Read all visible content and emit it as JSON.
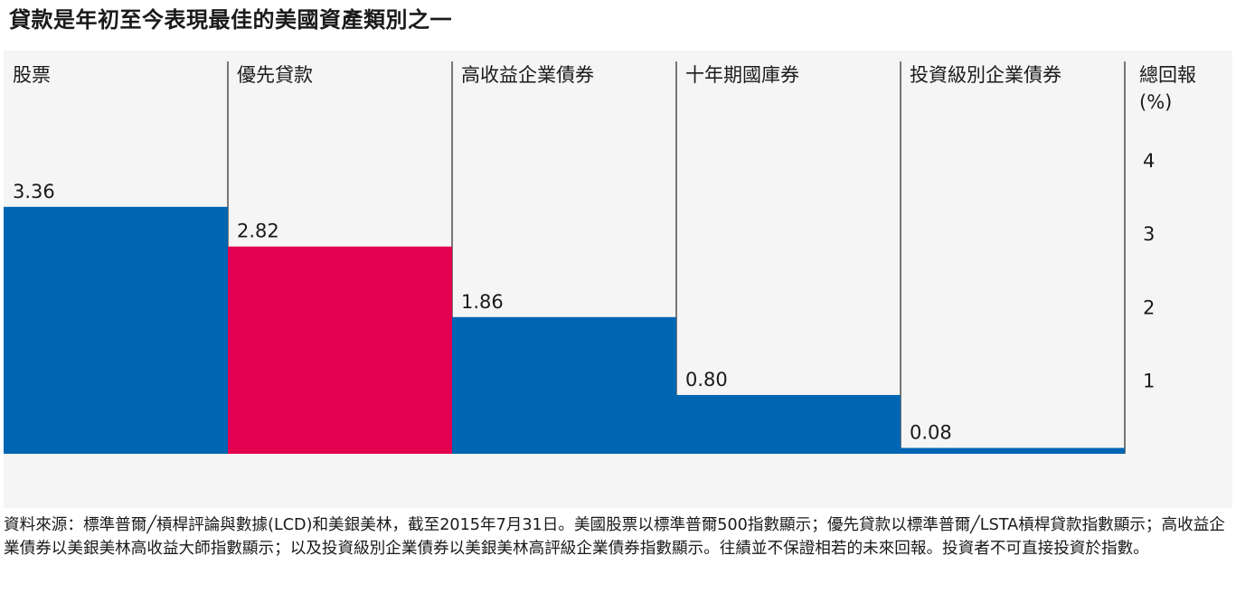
{
  "chart_data": {
    "type": "bar",
    "title": "貸款是年初至今表現最佳的美國資產類別之一",
    "categories": [
      "股票",
      "優先貸款",
      "高收益企業債券",
      "十年期國庫券",
      "投資級別企業債券"
    ],
    "values": [
      3.36,
      2.82,
      1.86,
      0.8,
      0.08
    ],
    "value_labels": [
      "3.36",
      "2.82",
      "1.86",
      "0.80",
      "0.08"
    ],
    "colors": [
      "#0066b3",
      "#e3004f",
      "#0066b3",
      "#0066b3",
      "#0066b3"
    ],
    "ylabel": [
      "總回報",
      "(%)"
    ],
    "yticks": [
      1,
      2,
      3,
      4
    ],
    "ylim": [
      0,
      4.35
    ],
    "grid": false,
    "y_axis_position": "right"
  },
  "footnote": "資料來源：標準普爾╱槓桿評論與數據(LCD)和美銀美林，截至2015年7月31日。美國股票以標準普爾500指數顯示；優先貸款以標準普爾╱LSTA槓桿貸款指數顯示；高收益企業債券以美銀美林高收益大師指數顯示；以及投資級別企業債券以美銀美林高評級企業債券指數顯示。往績並不保證相若的未來回報。投資者不可直接投資於指數。"
}
